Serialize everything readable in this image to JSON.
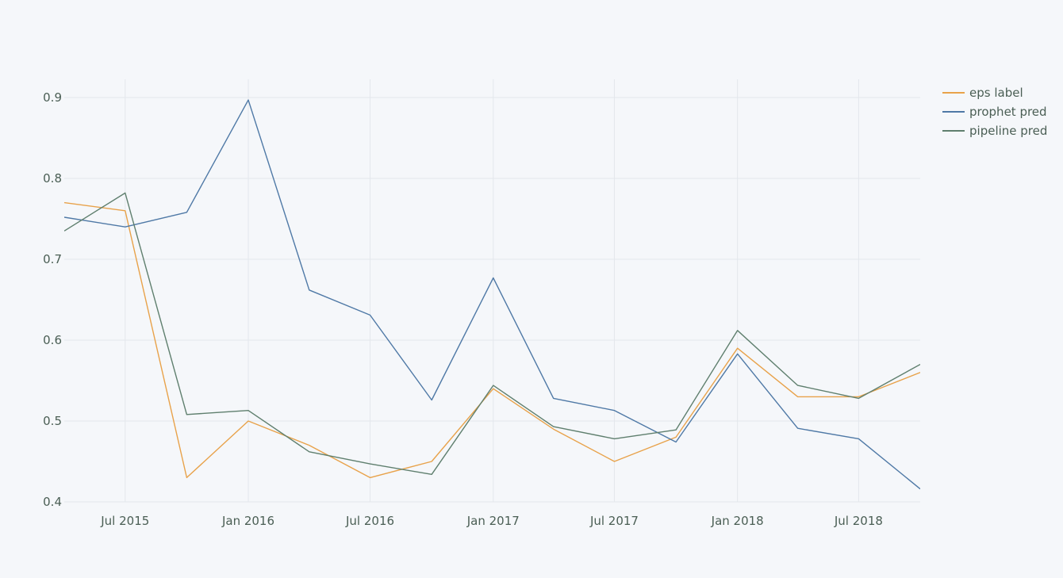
{
  "chart_data": {
    "type": "line",
    "title": "",
    "xlabel": "",
    "ylabel": "",
    "x": [
      "2015-04-01",
      "2015-07-01",
      "2015-10-01",
      "2016-01-01",
      "2016-04-01",
      "2016-07-01",
      "2016-10-01",
      "2017-01-01",
      "2017-04-01",
      "2017-07-01",
      "2017-10-01",
      "2018-01-01",
      "2018-04-01",
      "2018-07-01",
      "2018-10-01"
    ],
    "xlim": [
      "2015-04-01",
      "2018-10-01"
    ],
    "ylim": [
      0.4,
      0.92
    ],
    "x_ticks": [
      {
        "date": "2015-07-01",
        "label": "Jul 2015"
      },
      {
        "date": "2016-01-01",
        "label": "Jan 2016"
      },
      {
        "date": "2016-07-01",
        "label": "Jul 2016"
      },
      {
        "date": "2017-01-01",
        "label": "Jan 2017"
      },
      {
        "date": "2017-07-01",
        "label": "Jul 2017"
      },
      {
        "date": "2018-01-01",
        "label": "Jan 2018"
      },
      {
        "date": "2018-07-01",
        "label": "Jul 2018"
      }
    ],
    "y_ticks": [
      0.4,
      0.5,
      0.6,
      0.7,
      0.8,
      0.9
    ],
    "y_tick_labels": [
      "0.4",
      "0.5",
      "0.6",
      "0.7",
      "0.8",
      "0.9"
    ],
    "grid": true,
    "legend_position": "top-right",
    "series": [
      {
        "name": "eps label",
        "color": "#e8a24a",
        "values": [
          0.77,
          0.76,
          0.43,
          0.5,
          0.47,
          0.43,
          0.45,
          0.54,
          0.49,
          0.45,
          0.48,
          0.59,
          0.53,
          0.53,
          0.56
        ]
      },
      {
        "name": "prophet pred",
        "color": "#4f79a6",
        "values": [
          0.752,
          0.74,
          0.758,
          0.897,
          0.662,
          0.631,
          0.526,
          0.677,
          0.528,
          0.513,
          0.474,
          0.583,
          0.491,
          0.478,
          0.416
        ]
      },
      {
        "name": "pipeline pred",
        "color": "#5f7f6e",
        "values": [
          0.735,
          0.782,
          0.508,
          0.513,
          0.462,
          0.447,
          0.434,
          0.544,
          0.493,
          0.478,
          0.489,
          0.612,
          0.544,
          0.528,
          0.57
        ]
      }
    ]
  }
}
